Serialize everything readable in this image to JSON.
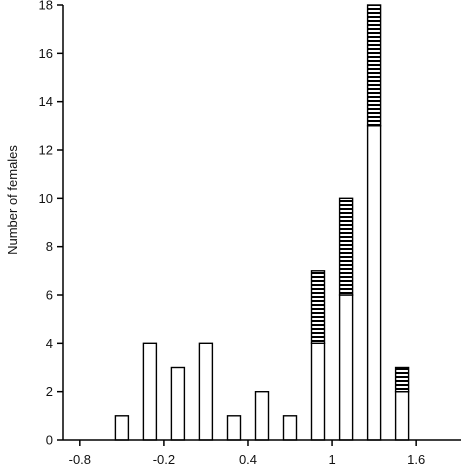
{
  "chart_data": {
    "type": "bar",
    "stacked": true,
    "title": "",
    "xlabel": "",
    "ylabel": "Number of females",
    "ylim": [
      0,
      18
    ],
    "xlim": [
      -0.92,
      1.92
    ],
    "y_ticks": [
      0,
      2,
      4,
      6,
      8,
      10,
      12,
      14,
      16,
      18
    ],
    "x_ticks": [
      -0.8,
      -0.2,
      0.4,
      1,
      1.6
    ],
    "x_tick_labels": [
      "-0.8",
      "-0.2",
      "0.4",
      "1",
      "1.6"
    ],
    "bin_width": 0.1,
    "grid": false,
    "legend": "none",
    "x": [
      -0.7,
      -0.6,
      -0.5,
      -0.4,
      -0.3,
      -0.2,
      -0.1,
      0.0,
      0.1,
      0.2,
      0.3,
      0.4,
      0.5,
      0.6,
      0.7,
      0.8,
      0.9,
      1.0,
      1.1,
      1.2,
      1.3,
      1.4,
      1.5,
      1.6,
      1.7,
      1.8
    ],
    "series": [
      {
        "fill": "open",
        "values": [
          0,
          0,
          1,
          0,
          4,
          0,
          3,
          0,
          4,
          0,
          1,
          0,
          2,
          0,
          1,
          0,
          4,
          0,
          6,
          0,
          13,
          0,
          2,
          0,
          0,
          0
        ]
      },
      {
        "fill": "hatched",
        "values": [
          0,
          0,
          0,
          0,
          0,
          0,
          0,
          0,
          0,
          0,
          0,
          0,
          0,
          0,
          0,
          0,
          3,
          0,
          4,
          0,
          5,
          0,
          1,
          0,
          0,
          0
        ]
      }
    ],
    "colors": {
      "axis": "#000000",
      "bar_fill": "#ffffff",
      "hatch": "#000000"
    }
  }
}
